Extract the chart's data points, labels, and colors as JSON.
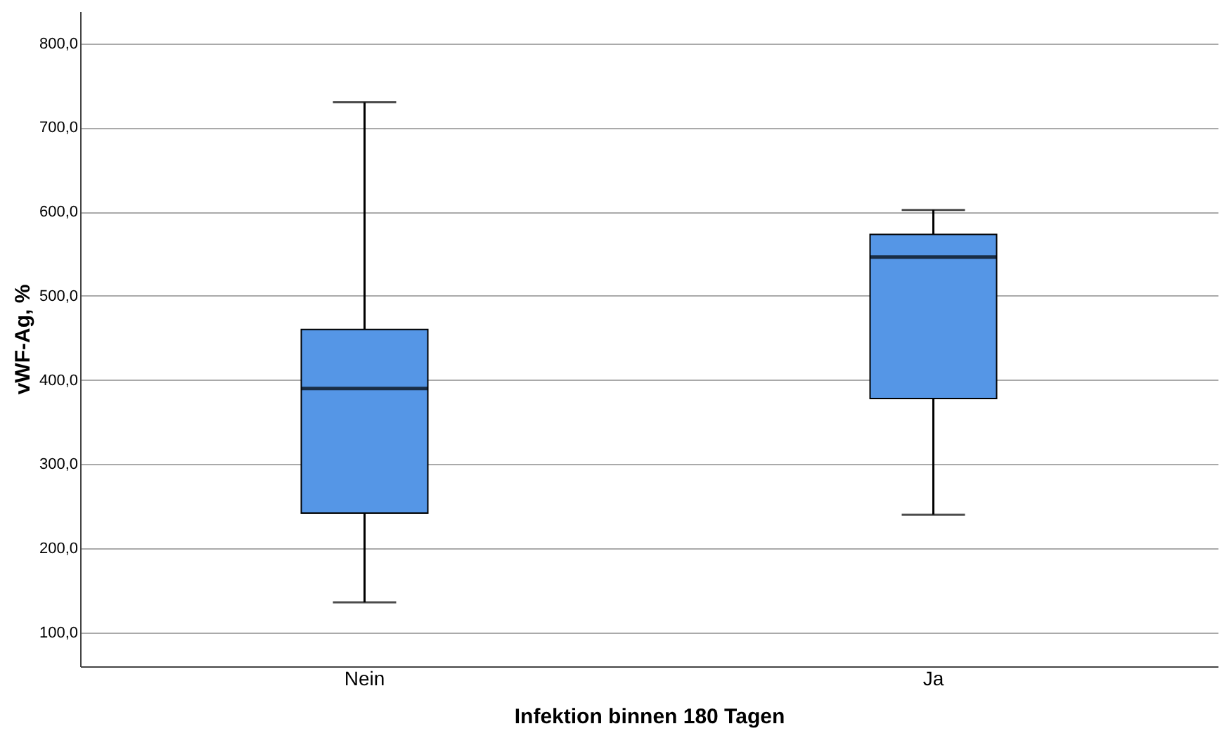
{
  "chart_data": {
    "type": "box",
    "xlabel": "Infektion binnen 180 Tagen",
    "ylabel": "vWF-Ag, %",
    "categories": [
      "Nein",
      "Ja"
    ],
    "color": "#5596e6",
    "boxes": [
      {
        "low": 136,
        "q1": 242,
        "median": 390,
        "q3": 460,
        "high": 730
      },
      {
        "low": 240,
        "q1": 378,
        "median": 546,
        "q3": 573,
        "high": 602
      }
    ],
    "ylim": [
      60,
      838
    ],
    "yticks": [
      {
        "value": 100,
        "label": "100,0"
      },
      {
        "value": 200,
        "label": "200,0"
      },
      {
        "value": 300,
        "label": "300,0"
      },
      {
        "value": 400,
        "label": "400,0"
      },
      {
        "value": 500,
        "label": "500,0"
      },
      {
        "value": 600,
        "label": "600,0"
      },
      {
        "value": 700,
        "label": "700,0"
      },
      {
        "value": 800,
        "label": "800,0"
      }
    ],
    "grid": "y"
  }
}
